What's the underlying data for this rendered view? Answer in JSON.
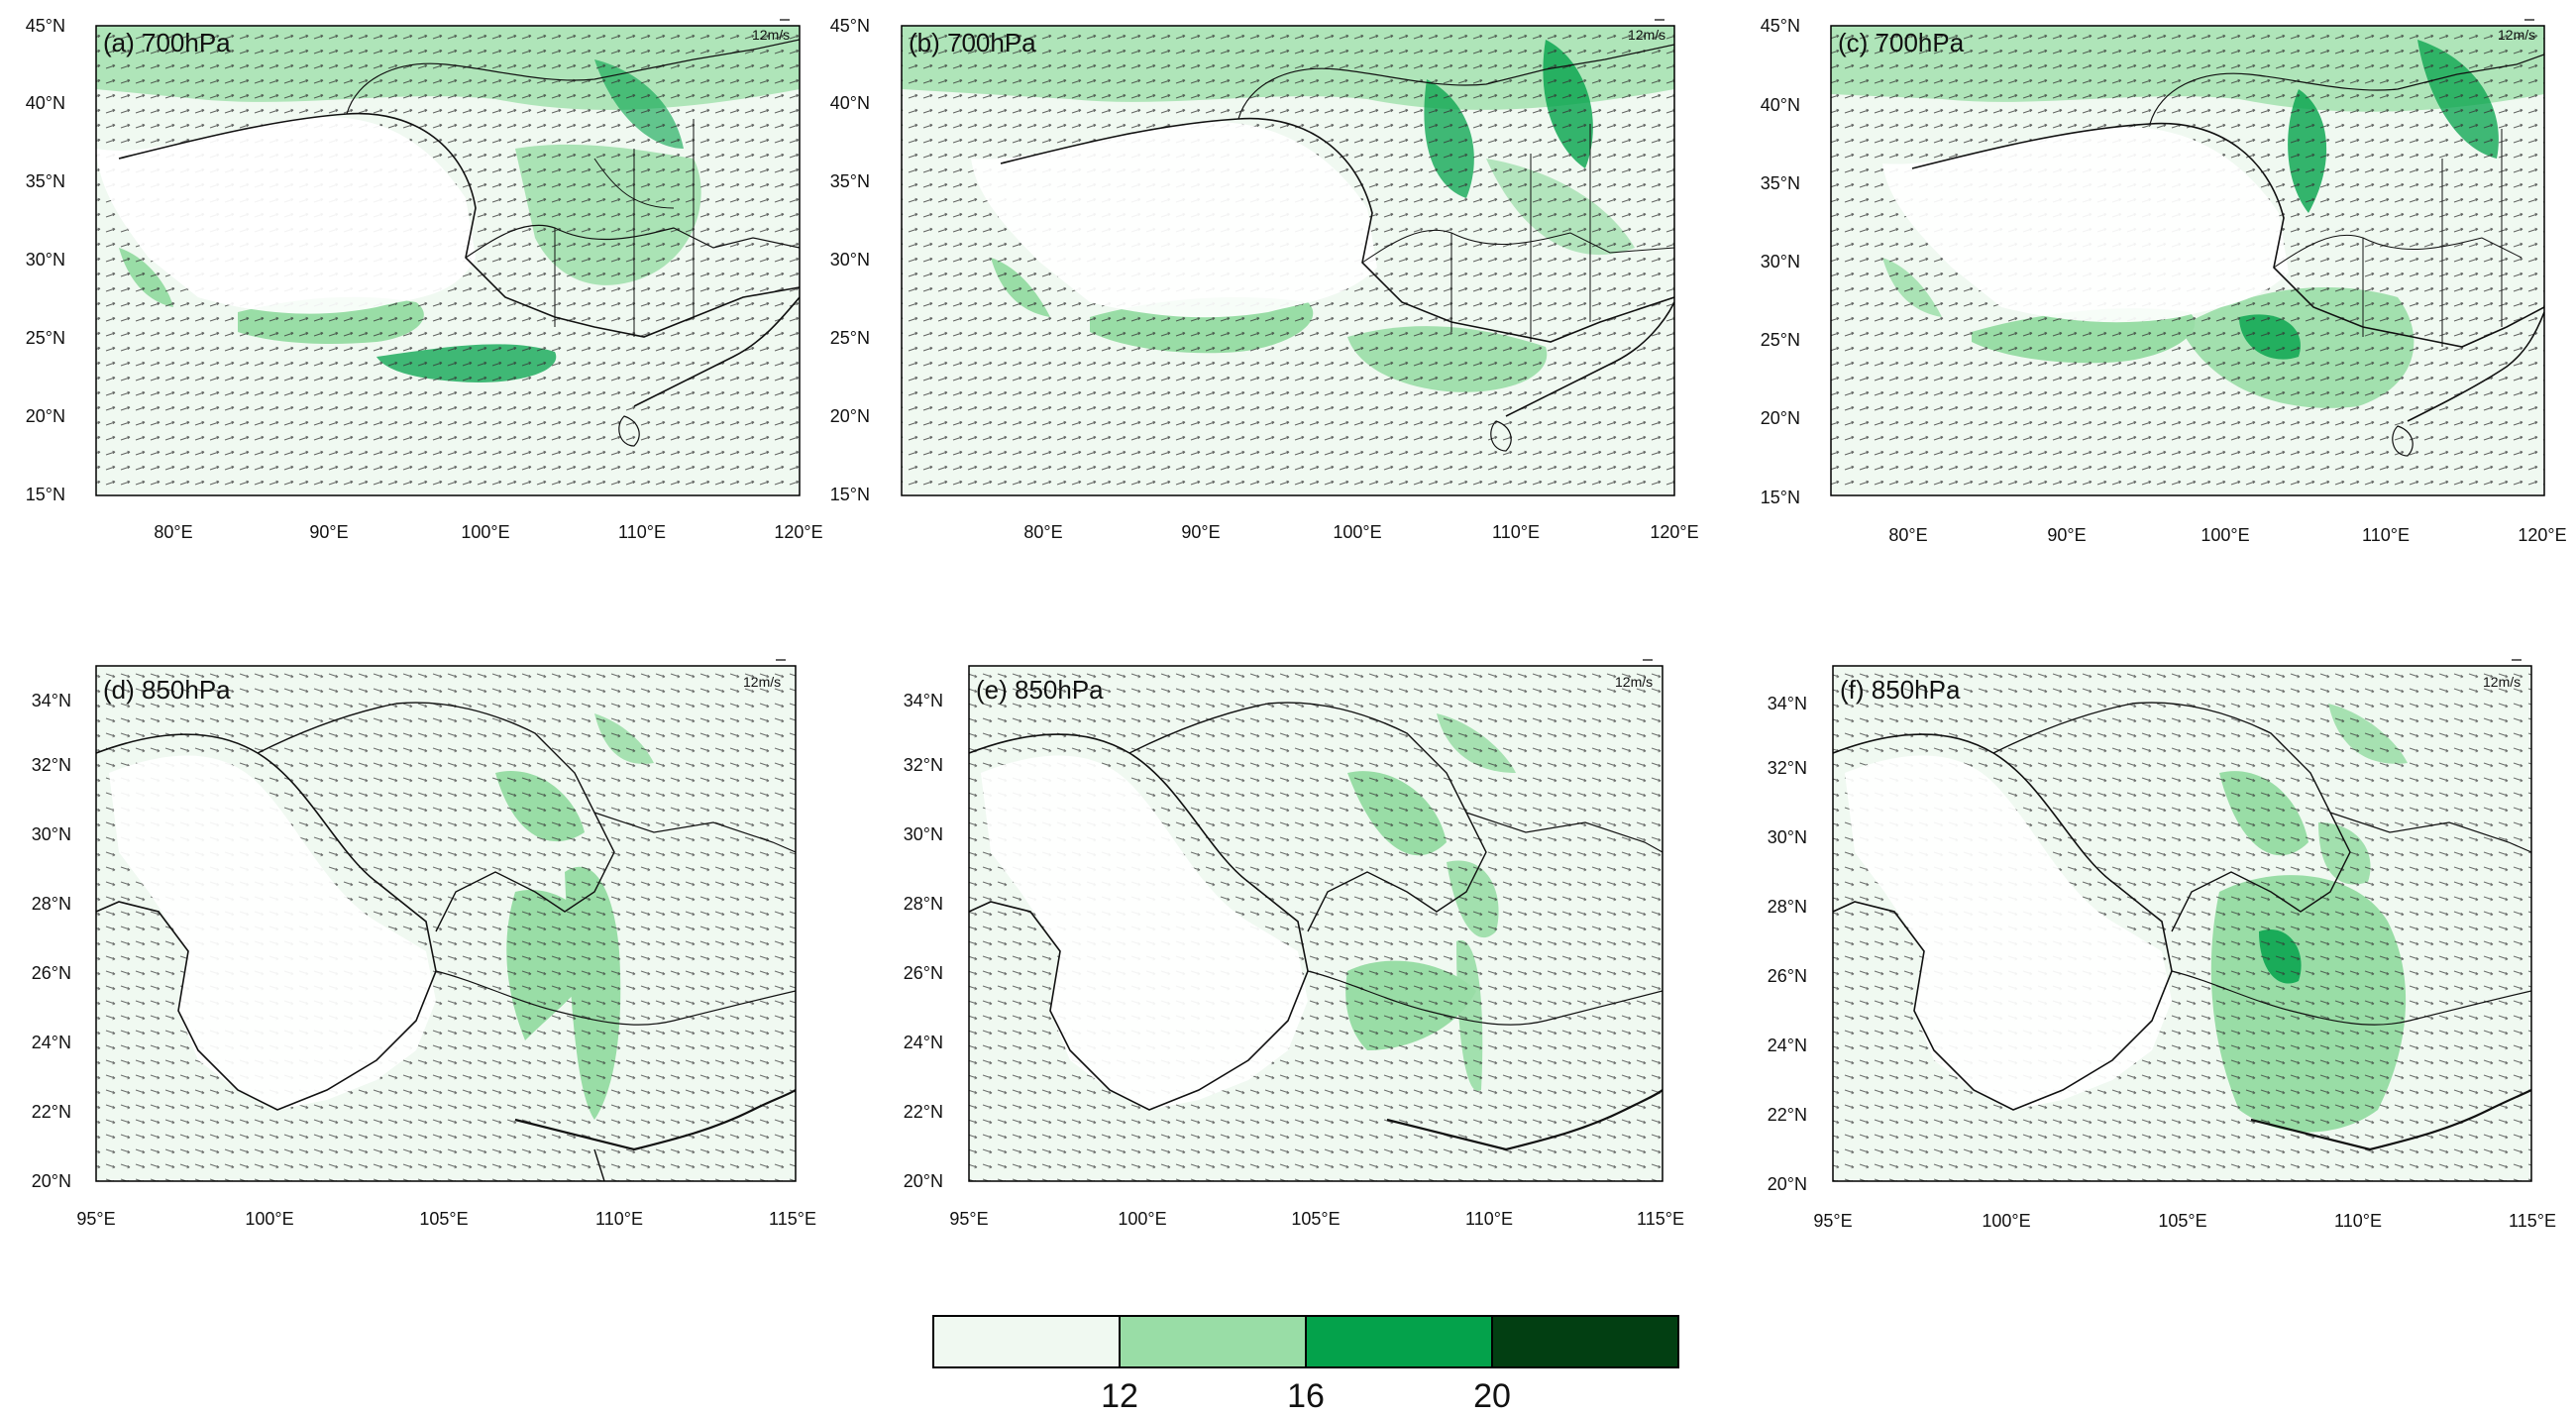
{
  "panels": [
    {
      "label": "(a) 700hPa",
      "scale_label": "12m/s",
      "lat_ticks": [
        "15°N",
        "20°N",
        "25°N",
        "30°N",
        "35°N",
        "40°N",
        "45°N"
      ],
      "lon_ticks": [
        "80°E",
        "90°E",
        "100°E",
        "110°E",
        "120°E"
      ]
    },
    {
      "label": "(b) 700hPa",
      "scale_label": "12m/s",
      "lat_ticks": [
        "15°N",
        "20°N",
        "25°N",
        "30°N",
        "35°N",
        "40°N",
        "45°N"
      ],
      "lon_ticks": [
        "80°E",
        "90°E",
        "100°E",
        "110°E",
        "120°E"
      ]
    },
    {
      "label": "(c) 700hPa",
      "scale_label": "12m/s",
      "lat_ticks": [
        "15°N",
        "20°N",
        "25°N",
        "30°N",
        "35°N",
        "40°N",
        "45°N"
      ],
      "lon_ticks": [
        "80°E",
        "90°E",
        "100°E",
        "110°E",
        "120°E"
      ]
    },
    {
      "label": "(d) 850hPa",
      "scale_label": "12m/s",
      "lat_ticks": [
        "20°N",
        "22°N",
        "24°N",
        "26°N",
        "28°N",
        "30°N",
        "32°N",
        "34°N"
      ],
      "lon_ticks": [
        "95°E",
        "100°E",
        "105°E",
        "110°E",
        "115°E"
      ]
    },
    {
      "label": "(e) 850hPa",
      "scale_label": "12m/s",
      "lat_ticks": [
        "20°N",
        "22°N",
        "24°N",
        "26°N",
        "28°N",
        "30°N",
        "32°N",
        "34°N"
      ],
      "lon_ticks": [
        "95°E",
        "100°E",
        "105°E",
        "110°E",
        "115°E"
      ]
    },
    {
      "label": "(f) 850hPa",
      "scale_label": "12m/s",
      "lat_ticks": [
        "20°N",
        "22°N",
        "24°N",
        "26°N",
        "28°N",
        "30°N",
        "32°N",
        "34°N"
      ],
      "lon_ticks": [
        "95°E",
        "100°E",
        "105°E",
        "110°E",
        "115°E"
      ]
    }
  ],
  "colorbar": {
    "colors": [
      "#f0f9f1",
      "#99dda6",
      "#04a24b",
      "#023f12"
    ],
    "labels": [
      "12",
      "16",
      "20"
    ]
  }
}
